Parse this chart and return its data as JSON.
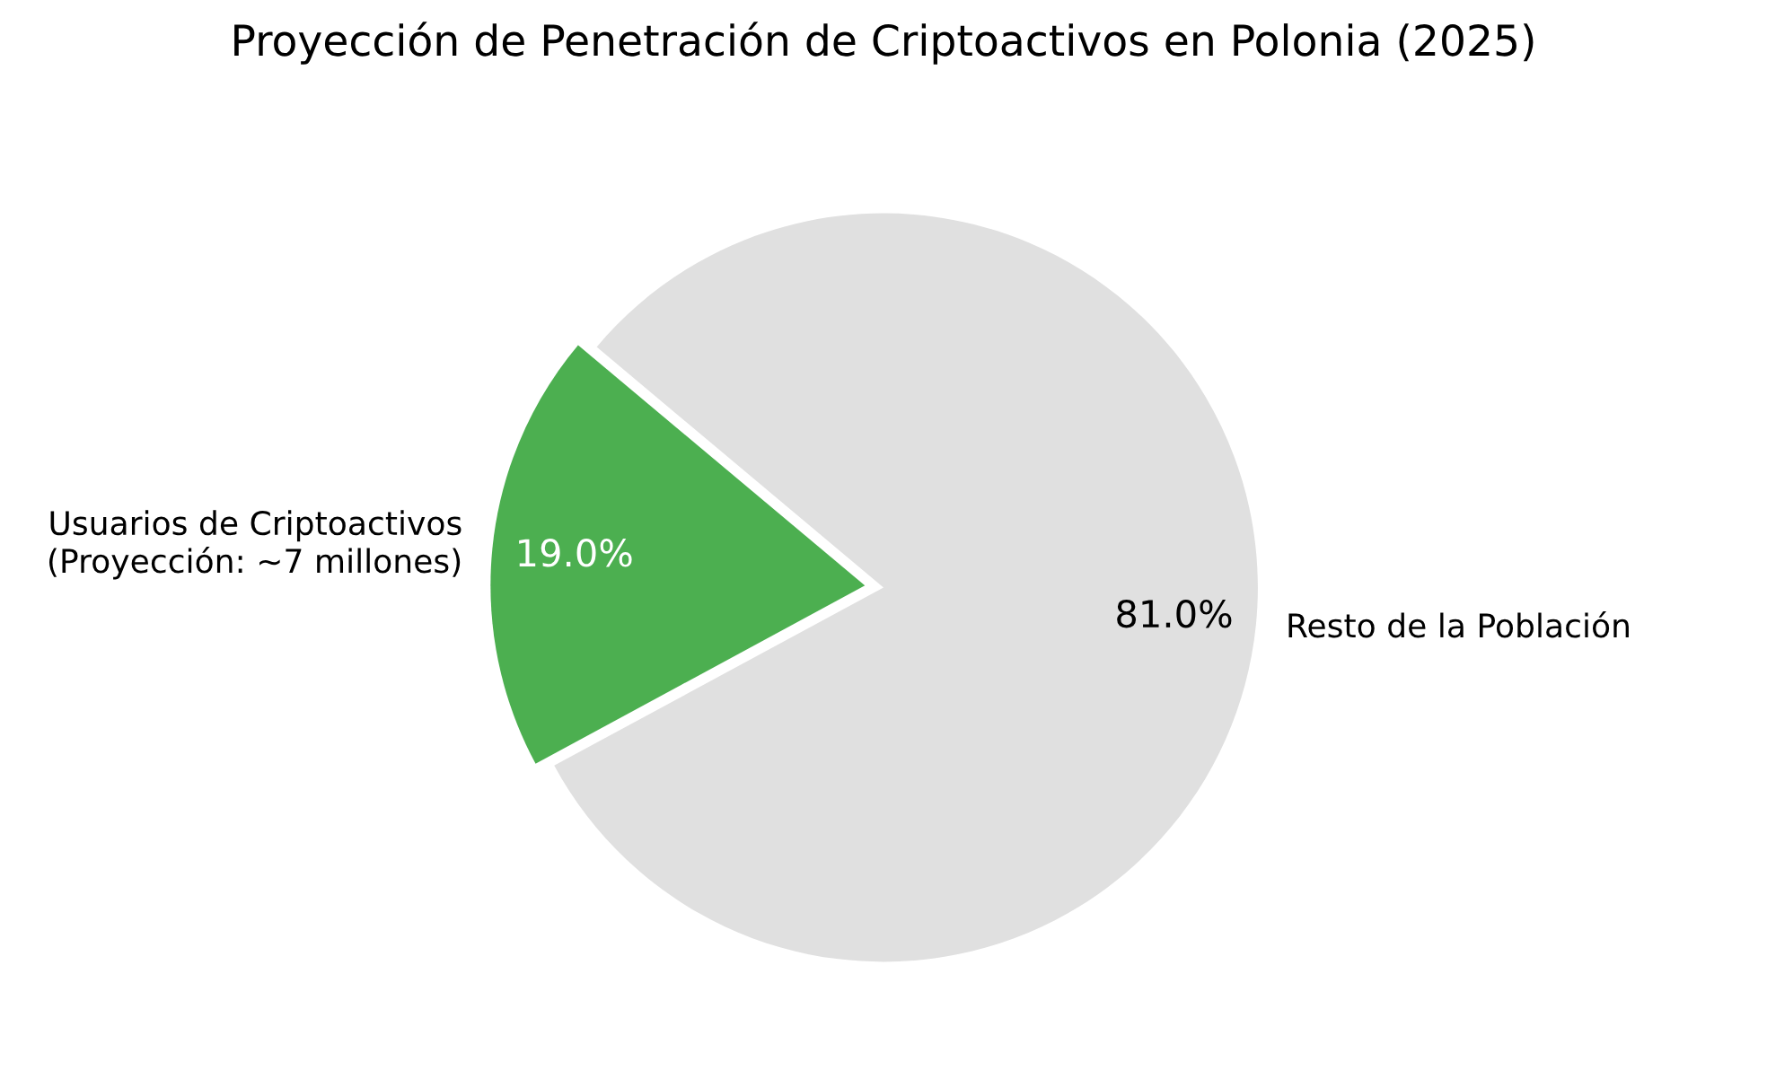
{
  "chart_data": {
    "type": "pie",
    "title": "Proyección de Penetración de Criptoactivos en Polonia (2025)",
    "categories": [
      "Usuarios de Criptoactivos\n(Proyección: ~7 millones)",
      "Resto de la Población"
    ],
    "values": [
      19.0,
      81.0
    ],
    "colors": [
      "#4caf50",
      "#e0e0e0"
    ],
    "value_labels": [
      "19.0%",
      "81.0%"
    ]
  }
}
